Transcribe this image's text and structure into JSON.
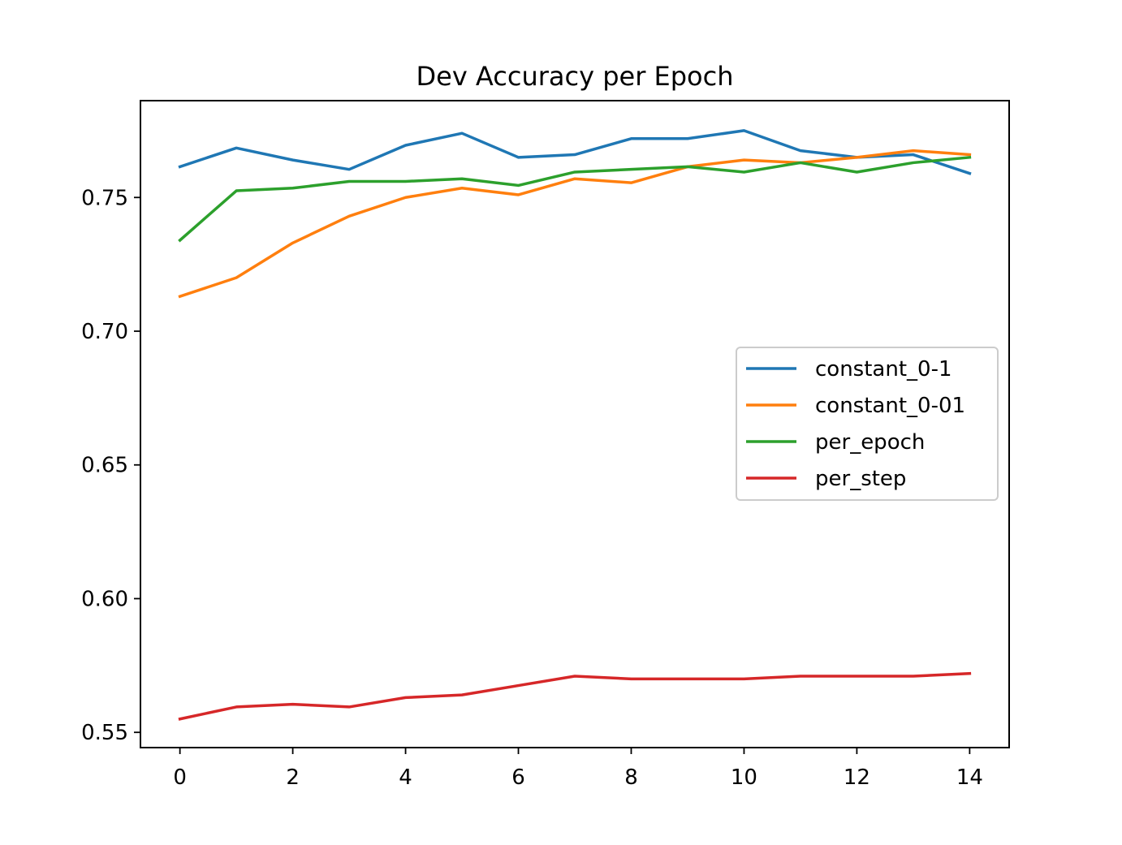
{
  "chart_data": {
    "type": "line",
    "title": "Dev Accuracy per Epoch",
    "xlabel": "",
    "ylabel": "",
    "xlim": [
      -0.7,
      14.7
    ],
    "ylim": [
      0.5443,
      0.7862
    ],
    "xticks": [
      0,
      2,
      4,
      6,
      8,
      10,
      12,
      14
    ],
    "xtick_labels": [
      "0",
      "2",
      "4",
      "6",
      "8",
      "10",
      "12",
      "14"
    ],
    "yticks": [
      0.55,
      0.6,
      0.65,
      0.7,
      0.75
    ],
    "ytick_labels": [
      "0.55",
      "0.60",
      "0.65",
      "0.70",
      "0.75"
    ],
    "grid": false,
    "legend_position": "center-right",
    "x": [
      0,
      1,
      2,
      3,
      4,
      5,
      6,
      7,
      8,
      9,
      10,
      11,
      12,
      13,
      14
    ],
    "series": [
      {
        "name": "constant_0-1",
        "color": "#1f77b4",
        "values": [
          0.7615,
          0.7685,
          0.764,
          0.7605,
          0.7695,
          0.774,
          0.765,
          0.766,
          0.772,
          0.772,
          0.775,
          0.7675,
          0.765,
          0.766,
          0.759
        ]
      },
      {
        "name": "constant_0-01",
        "color": "#ff7f0e",
        "values": [
          0.713,
          0.72,
          0.733,
          0.743,
          0.75,
          0.7535,
          0.751,
          0.757,
          0.7555,
          0.7615,
          0.764,
          0.763,
          0.765,
          0.7675,
          0.766
        ]
      },
      {
        "name": "per_epoch",
        "color": "#2ca02c",
        "values": [
          0.734,
          0.7525,
          0.7535,
          0.756,
          0.756,
          0.757,
          0.7545,
          0.7595,
          0.7605,
          0.7615,
          0.7595,
          0.763,
          0.7595,
          0.763,
          0.765
        ]
      },
      {
        "name": "per_step",
        "color": "#d62728",
        "values": [
          0.555,
          0.5595,
          0.5605,
          0.5595,
          0.563,
          0.564,
          0.5675,
          0.571,
          0.57,
          0.57,
          0.57,
          0.571,
          0.571,
          0.571,
          0.572
        ]
      }
    ]
  }
}
